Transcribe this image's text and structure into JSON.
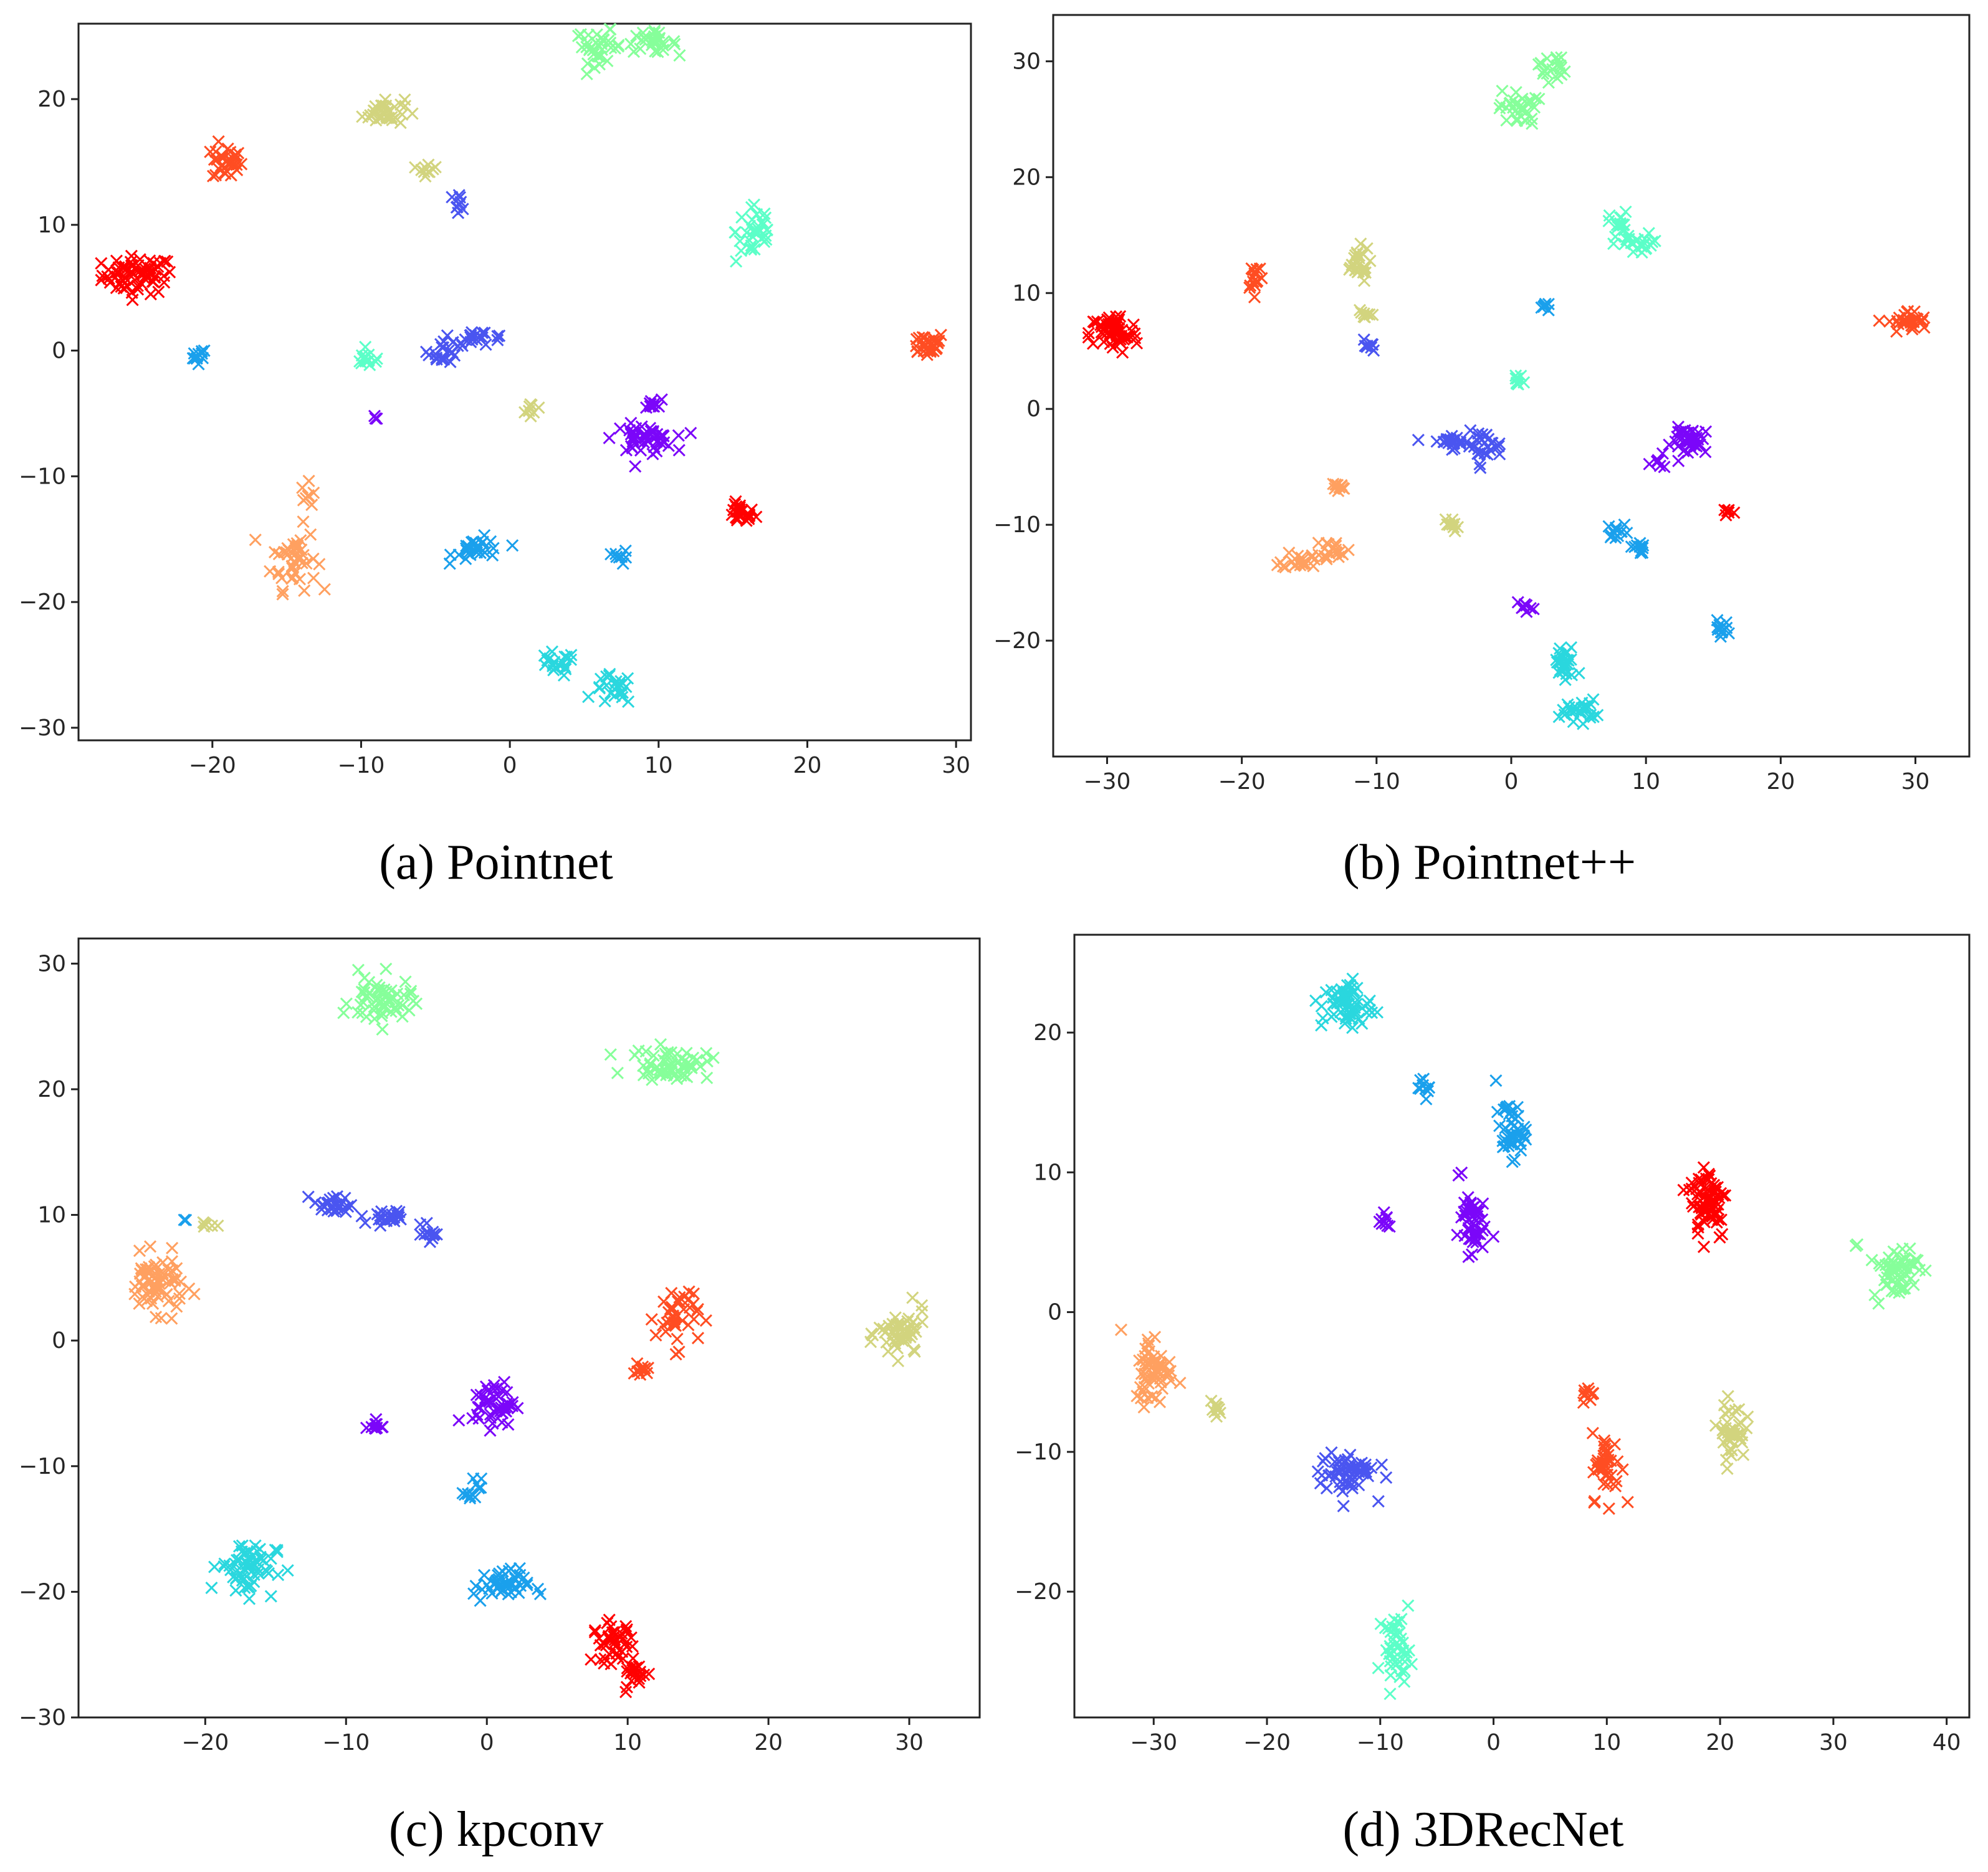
{
  "figure": {
    "palette": {
      "red": "#ff0000",
      "orange_red": "#ff4d22",
      "orange": "#ffa060",
      "olive": "#d2d47e",
      "mint": "#86ff9a",
      "aqua_green": "#5cffc8",
      "cyan": "#2ad7de",
      "sky": "#1aa0ec",
      "blue": "#4a55f0",
      "purple": "#7b06f9"
    }
  },
  "chart_data": [
    {
      "type": "scatter",
      "caption": "(a) Pointnet",
      "marker": "x",
      "xlim": [
        -29,
        31
      ],
      "ylim": [
        -31,
        26
      ],
      "xticks": [
        -20,
        -10,
        0,
        10,
        20,
        30
      ],
      "yticks": [
        -30,
        -20,
        -10,
        0,
        10,
        20
      ],
      "xtick_labels": [
        "−20",
        "−10",
        "0",
        "10",
        "20",
        "30"
      ],
      "ytick_labels": [
        "−30",
        "−20",
        "−10",
        "0",
        "10",
        "20"
      ],
      "clusters": [
        {
          "color": "red",
          "points": [
            [
              -25,
              6,
              2.4,
              1.5,
              70
            ],
            [
              15.5,
              -13,
              1,
              0.8,
              25
            ]
          ]
        },
        {
          "color": "orange_red",
          "points": [
            [
              -19,
              15,
              1,
              1.5,
              30
            ],
            [
              28,
              0.5,
              1.3,
              1,
              30
            ]
          ]
        },
        {
          "color": "orange",
          "points": [
            [
              -14.5,
              -16.5,
              1.5,
              2.5,
              45
            ],
            [
              -13.5,
              -11.5,
              0.5,
              1,
              8
            ]
          ]
        },
        {
          "color": "olive",
          "points": [
            [
              -8.5,
              19,
              1.4,
              1.1,
              35
            ],
            [
              -5.5,
              14.5,
              0.6,
              0.6,
              10
            ],
            [
              1.5,
              -4.8,
              0.5,
              0.6,
              8
            ]
          ]
        },
        {
          "color": "mint",
          "points": [
            [
              6,
              24.2,
              1.6,
              1.3,
              35
            ],
            [
              9.5,
              24.5,
              1.7,
              0.8,
              30
            ]
          ]
        },
        {
          "color": "aqua_green",
          "points": [
            [
              16.5,
              9.5,
              1.3,
              2.6,
              35
            ],
            [
              -9.5,
              -0.7,
              1,
              0.6,
              15
            ]
          ]
        },
        {
          "color": "cyan",
          "points": [
            [
              3,
              -25,
              1.4,
              1,
              20
            ],
            [
              7,
              -27,
              1.3,
              1.2,
              25
            ]
          ]
        },
        {
          "color": "sky",
          "points": [
            [
              -21,
              -0.5,
              0.6,
              0.7,
              12
            ],
            [
              -2,
              -15.8,
              1.8,
              0.9,
              30
            ],
            [
              7.5,
              -16.5,
              0.5,
              0.6,
              8
            ]
          ]
        },
        {
          "color": "blue",
          "points": [
            [
              -4.5,
              0,
              1,
              1,
              20
            ],
            [
              -2,
              1,
              1.8,
              0.6,
              20
            ],
            [
              -3.5,
              11.8,
              0.6,
              0.7,
              10
            ]
          ]
        },
        {
          "color": "purple",
          "points": [
            [
              9,
              -7,
              2,
              1.1,
              45
            ],
            [
              9.5,
              -4.3,
              0.7,
              0.4,
              10
            ],
            [
              -9,
              -5.3,
              0.2,
              0.2,
              3
            ]
          ]
        }
      ]
    },
    {
      "type": "scatter",
      "caption": "(b) Pointnet++",
      "marker": "x",
      "xlim": [
        -34,
        34
      ],
      "ylim": [
        -30,
        34
      ],
      "xticks": [
        -30,
        -20,
        -10,
        0,
        10,
        20,
        30
      ],
      "yticks": [
        -20,
        -10,
        0,
        10,
        20,
        30
      ],
      "xtick_labels": [
        "−30",
        "−20",
        "−10",
        "0",
        "10",
        "20",
        "30"
      ],
      "ytick_labels": [
        "−20",
        "−10",
        "0",
        "10",
        "20",
        "30"
      ],
      "clusters": [
        {
          "color": "red",
          "points": [
            [
              -29.5,
              6.5,
              1.8,
              1.8,
              60
            ],
            [
              16,
              -8.8,
              0.5,
              0.5,
              6
            ]
          ]
        },
        {
          "color": "orange_red",
          "points": [
            [
              -19,
              11.5,
              0.6,
              1.3,
              15
            ],
            [
              29.5,
              7.5,
              1.5,
              1,
              30
            ]
          ]
        },
        {
          "color": "orange",
          "points": [
            [
              -15.5,
              -13,
              1.5,
              0.8,
              25
            ],
            [
              -13,
              -12,
              1,
              0.8,
              15
            ],
            [
              -13,
              -6.8,
              0.8,
              0.5,
              10
            ]
          ]
        },
        {
          "color": "olive",
          "points": [
            [
              -11.5,
              12.5,
              1,
              1.5,
              25
            ],
            [
              -11,
              8,
              0.6,
              0.6,
              8
            ],
            [
              -4.5,
              -10,
              0.6,
              0.6,
              10
            ]
          ]
        },
        {
          "color": "mint",
          "points": [
            [
              0.5,
              26,
              1.4,
              1.5,
              30
            ],
            [
              3,
              29.5,
              1,
              1.2,
              20
            ]
          ]
        },
        {
          "color": "aqua_green",
          "points": [
            [
              8,
              16,
              0.7,
              1,
              15
            ],
            [
              9.5,
              14.2,
              1.7,
              0.9,
              25
            ],
            [
              0.5,
              2.3,
              0.5,
              0.6,
              8
            ]
          ]
        },
        {
          "color": "cyan",
          "points": [
            [
              4,
              -22,
              0.9,
              1.7,
              30
            ],
            [
              5,
              -26,
              1.3,
              0.9,
              25
            ]
          ]
        },
        {
          "color": "sky",
          "points": [
            [
              2.5,
              8.8,
              0.5,
              0.5,
              6
            ],
            [
              8,
              -10.5,
              0.8,
              0.6,
              12
            ],
            [
              9.5,
              -12,
              0.6,
              0.5,
              10
            ],
            [
              15.5,
              -19,
              0.6,
              0.7,
              12
            ]
          ]
        },
        {
          "color": "blue",
          "points": [
            [
              -4.5,
              -2.8,
              1.6,
              0.6,
              25
            ],
            [
              -2,
              -3.2,
              1.3,
              1.2,
              25
            ],
            [
              -10.5,
              5.5,
              0.5,
              0.6,
              8
            ]
          ]
        },
        {
          "color": "purple",
          "points": [
            [
              13.5,
              -2.8,
              1.6,
              1.2,
              40
            ],
            [
              11,
              -4.8,
              0.4,
              0.5,
              6
            ],
            [
              1,
              -17,
              0.5,
              0.5,
              8
            ]
          ]
        }
      ]
    },
    {
      "type": "scatter",
      "caption": "(c) kpconv",
      "marker": "x",
      "xlim": [
        -29,
        35
      ],
      "ylim": [
        -30,
        32
      ],
      "xticks": [
        -20,
        -10,
        0,
        10,
        20,
        30
      ],
      "yticks": [
        -30,
        -20,
        -10,
        0,
        10,
        20,
        30
      ],
      "xtick_labels": [
        "−20",
        "−10",
        "0",
        "10",
        "20",
        "30"
      ],
      "ytick_labels": [
        "−30",
        "−20",
        "−10",
        "0",
        "10",
        "20",
        "30"
      ],
      "clusters": [
        {
          "color": "red",
          "points": [
            [
              9,
              -24,
              1.5,
              1.6,
              40
            ],
            [
              10.5,
              -26.5,
              1,
              1,
              20
            ]
          ]
        },
        {
          "color": "orange_red",
          "points": [
            [
              13.5,
              2,
              1.5,
              2.6,
              40
            ],
            [
              11,
              -2.5,
              0.6,
              0.6,
              10
            ]
          ]
        },
        {
          "color": "orange",
          "points": [
            [
              -23.5,
              4.5,
              2,
              2.2,
              70
            ]
          ]
        },
        {
          "color": "olive",
          "points": [
            [
              29.5,
              0.5,
              1.7,
              2,
              50
            ],
            [
              -20,
              9.2,
              0.6,
              0.3,
              6
            ]
          ]
        },
        {
          "color": "mint",
          "points": [
            [
              -7.5,
              27,
              2.2,
              2,
              60
            ],
            [
              13,
              22,
              2.8,
              1.2,
              60
            ]
          ]
        },
        {
          "color": "cyan",
          "points": [
            [
              -17,
              -18,
              2,
              2.2,
              60
            ]
          ]
        },
        {
          "color": "sky",
          "points": [
            [
              1,
              -19.5,
              2,
              1.3,
              45
            ],
            [
              -1,
              -12,
              0.6,
              1,
              12
            ],
            [
              -21.5,
              9.5,
              0.2,
              0.2,
              2
            ]
          ]
        },
        {
          "color": "blue",
          "points": [
            [
              -11,
              10.8,
              1.3,
              0.8,
              25
            ],
            [
              -7,
              9.8,
              2,
              0.6,
              25
            ],
            [
              -4,
              8.5,
              0.6,
              0.8,
              12
            ]
          ]
        },
        {
          "color": "purple",
          "points": [
            [
              0.5,
              -5,
              1.5,
              1.8,
              45
            ],
            [
              -8,
              -6.8,
              0.6,
              0.5,
              10
            ]
          ]
        }
      ]
    },
    {
      "type": "scatter",
      "caption": "(d) 3DRecNet",
      "marker": "x",
      "xlim": [
        -37,
        42
      ],
      "ylim": [
        -29,
        27
      ],
      "xticks": [
        -30,
        -20,
        -10,
        0,
        10,
        20,
        30,
        40
      ],
      "yticks": [
        -20,
        -10,
        0,
        10,
        20
      ],
      "xtick_labels": [
        "−30",
        "−20",
        "−10",
        "0",
        "10",
        "20",
        "30",
        "40"
      ],
      "ytick_labels": [
        "−20",
        "−10",
        "0",
        "10",
        "20"
      ],
      "clusters": [
        {
          "color": "red",
          "points": [
            [
              19,
              8,
              1.7,
              2.8,
              70
            ]
          ]
        },
        {
          "color": "orange_red",
          "points": [
            [
              10,
              -11,
              1.3,
              2.4,
              40
            ],
            [
              8.5,
              -6,
              0.6,
              0.6,
              10
            ]
          ]
        },
        {
          "color": "orange",
          "points": [
            [
              -30,
              -4,
              1.7,
              2.6,
              60
            ]
          ]
        },
        {
          "color": "olive",
          "points": [
            [
              21,
              -8.5,
              1.2,
              2,
              40
            ],
            [
              -24.5,
              -7,
              0.6,
              0.6,
              10
            ]
          ]
        },
        {
          "color": "mint",
          "points": [
            [
              35.5,
              3,
              2,
              2,
              60
            ],
            [
              32,
              4.8,
              0.2,
              0.2,
              2
            ]
          ]
        },
        {
          "color": "aqua_green",
          "points": [
            [
              -8.5,
              -24,
              1.2,
              2.2,
              45
            ]
          ]
        },
        {
          "color": "cyan",
          "points": [
            [
              -13,
              22,
              2.2,
              1.8,
              60
            ]
          ]
        },
        {
          "color": "sky",
          "points": [
            [
              1.5,
              13,
              1.3,
              2,
              45
            ],
            [
              -6,
              16,
              0.6,
              0.6,
              10
            ]
          ]
        },
        {
          "color": "blue",
          "points": [
            [
              -13,
              -11.5,
              2.5,
              1.6,
              60
            ]
          ]
        },
        {
          "color": "purple",
          "points": [
            [
              -2,
              6.5,
              1.2,
              2.2,
              50
            ],
            [
              -9.5,
              6.5,
              0.5,
              0.6,
              10
            ],
            [
              -3,
              10,
              0.2,
              0.2,
              2
            ]
          ]
        }
      ]
    }
  ]
}
